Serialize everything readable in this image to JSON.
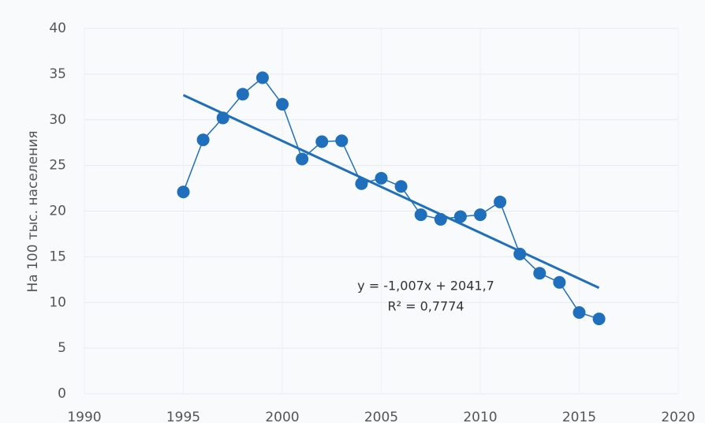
{
  "chart_data": {
    "type": "line",
    "y_label": "На 100 тыс. населения",
    "x": [
      1995,
      1996,
      1997,
      1998,
      1999,
      2000,
      2001,
      2002,
      2003,
      2004,
      2005,
      2006,
      2007,
      2008,
      2009,
      2010,
      2011,
      2012,
      2013,
      2014,
      2015,
      2016
    ],
    "series": [
      {
        "color": "#1f6fbc",
        "values": [
          22.1,
          27.8,
          30.2,
          32.8,
          34.6,
          31.7,
          25.7,
          27.6,
          27.7,
          23.0,
          23.6,
          22.7,
          19.6,
          19.1,
          19.4,
          19.6,
          21.0,
          15.3,
          13.2,
          12.2,
          8.9,
          8.2
        ]
      }
    ],
    "trendline": {
      "color": "#1f6fbc",
      "x": [
        1995,
        2016
      ],
      "values": [
        32.7,
        11.6
      ]
    },
    "annotations": [
      "y = -1,007x + 2041,7",
      "R² = 0,7774"
    ],
    "xlim": [
      1990,
      2020
    ],
    "xticks": [
      1990,
      1995,
      2000,
      2005,
      2010,
      2015,
      2020
    ],
    "ylim": [
      0,
      40
    ],
    "yticks": [
      0,
      5,
      10,
      15,
      20,
      25,
      30,
      35,
      40
    ],
    "grid": true
  }
}
